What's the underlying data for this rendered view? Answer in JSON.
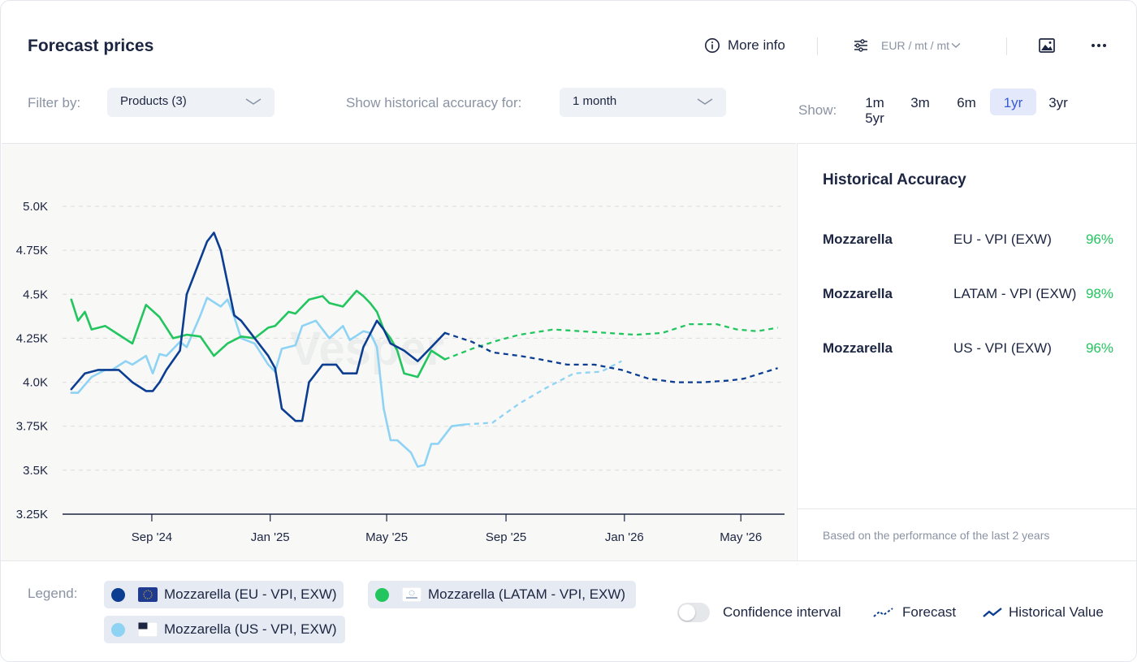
{
  "header": {
    "title": "Forecast prices",
    "more_info": "More info",
    "units": "EUR / mt / mt"
  },
  "filters": {
    "filter_label": "Filter by:",
    "products_value": "Products (3)",
    "history_label": "Show historical accuracy for:",
    "history_value": "1 month",
    "show_label": "Show:",
    "ranges": [
      "1m",
      "3m",
      "6m",
      "1yr",
      "3yr",
      "5yr"
    ],
    "active_range": "1yr"
  },
  "watermark": "Vesper",
  "accuracy": {
    "title": "Historical Accuracy",
    "rows": [
      {
        "product": "Mozzarella",
        "market": "EU - VPI (EXW)",
        "value": "96%"
      },
      {
        "product": "Mozzarella",
        "market": "LATAM - VPI (EXW)",
        "value": "98%"
      },
      {
        "product": "Mozzarella",
        "market": "US - VPI (EXW)",
        "value": "96%"
      }
    ],
    "footnote": "Based on the performance of the last 2 years"
  },
  "legend": {
    "label": "Legend:",
    "items": [
      {
        "label": "Mozzarella (EU - VPI, EXW)",
        "color": "#0b3d91"
      },
      {
        "label": "Mozzarella (LATAM - VPI, EXW)",
        "color": "#22c55e"
      },
      {
        "label": "Mozzarella (US - VPI, EXW)",
        "color": "#8fd3f4"
      }
    ],
    "confidence": "Confidence interval",
    "confidence_on": false,
    "forecast": "Forecast",
    "historical": "Historical Value"
  },
  "chart_data": {
    "type": "line",
    "ylim": [
      3250,
      5000
    ],
    "yticks": [
      3250,
      3500,
      3750,
      4000,
      4250,
      4500,
      4750,
      5000
    ],
    "ytick_labels": [
      "3.25K",
      "3.5K",
      "3.75K",
      "4.0K",
      "4.25K",
      "4.5K",
      "4.75K",
      "5.0K"
    ],
    "xlim": [
      "2024-06-01",
      "2026-06-15"
    ],
    "xticks": [
      "2024-09-01",
      "2025-01-01",
      "2025-05-01",
      "2025-09-01",
      "2026-01-01",
      "2026-05-01"
    ],
    "xtick_labels": [
      "Sep '24",
      "Jan '25",
      "May '25",
      "Sep '25",
      "Jan '26",
      "May '26"
    ],
    "grid": true,
    "series": [
      {
        "name": "Mozzarella (EU - VPI, EXW)",
        "color": "#0b3d91",
        "historical": [
          [
            "2024-06-10",
            3960
          ],
          [
            "2024-06-24",
            4050
          ],
          [
            "2024-07-08",
            4070
          ],
          [
            "2024-07-29",
            4070
          ],
          [
            "2024-08-12",
            4000
          ],
          [
            "2024-08-26",
            3950
          ],
          [
            "2024-09-02",
            3950
          ],
          [
            "2024-09-09",
            4000
          ],
          [
            "2024-09-16",
            4070
          ],
          [
            "2024-09-30",
            4180
          ],
          [
            "2024-10-07",
            4500
          ],
          [
            "2024-10-14",
            4600
          ],
          [
            "2024-10-28",
            4800
          ],
          [
            "2024-11-04",
            4850
          ],
          [
            "2024-11-11",
            4750
          ],
          [
            "2024-11-25",
            4380
          ],
          [
            "2024-12-02",
            4350
          ],
          [
            "2024-12-16",
            4250
          ],
          [
            "2024-12-30",
            4150
          ],
          [
            "2025-01-06",
            4080
          ],
          [
            "2025-01-13",
            3850
          ],
          [
            "2025-01-27",
            3780
          ],
          [
            "2025-02-03",
            3780
          ],
          [
            "2025-02-10",
            4000
          ],
          [
            "2025-02-24",
            4100
          ],
          [
            "2025-03-10",
            4100
          ],
          [
            "2025-03-17",
            4050
          ],
          [
            "2025-03-31",
            4050
          ],
          [
            "2025-04-07",
            4200
          ],
          [
            "2025-04-21",
            4350
          ],
          [
            "2025-04-28",
            4300
          ],
          [
            "2025-05-05",
            4220
          ],
          [
            "2025-05-19",
            4180
          ],
          [
            "2025-06-02",
            4120
          ],
          [
            "2025-06-16",
            4200
          ],
          [
            "2025-06-30",
            4280
          ]
        ],
        "forecast": [
          [
            "2025-06-30",
            4280
          ],
          [
            "2025-07-28",
            4230
          ],
          [
            "2025-08-18",
            4170
          ],
          [
            "2025-09-15",
            4150
          ],
          [
            "2025-10-06",
            4130
          ],
          [
            "2025-11-03",
            4100
          ],
          [
            "2025-12-01",
            4100
          ],
          [
            "2025-12-29",
            4070
          ],
          [
            "2026-01-26",
            4020
          ],
          [
            "2026-02-23",
            4000
          ],
          [
            "2026-03-23",
            4000
          ],
          [
            "2026-04-20",
            4010
          ],
          [
            "2026-05-04",
            4020
          ],
          [
            "2026-06-08",
            4080
          ]
        ]
      },
      {
        "name": "Mozzarella (LATAM - VPI, EXW)",
        "color": "#22c55e",
        "historical": [
          [
            "2024-06-10",
            4470
          ],
          [
            "2024-06-17",
            4350
          ],
          [
            "2024-06-24",
            4400
          ],
          [
            "2024-07-01",
            4300
          ],
          [
            "2024-07-15",
            4320
          ],
          [
            "2024-07-29",
            4270
          ],
          [
            "2024-08-12",
            4220
          ],
          [
            "2024-08-26",
            4440
          ],
          [
            "2024-09-09",
            4370
          ],
          [
            "2024-09-23",
            4250
          ],
          [
            "2024-10-07",
            4270
          ],
          [
            "2024-10-21",
            4260
          ],
          [
            "2024-11-04",
            4150
          ],
          [
            "2024-11-18",
            4220
          ],
          [
            "2024-12-02",
            4260
          ],
          [
            "2024-12-16",
            4250
          ],
          [
            "2024-12-30",
            4310
          ],
          [
            "2025-01-06",
            4320
          ],
          [
            "2025-01-20",
            4400
          ],
          [
            "2025-01-27",
            4390
          ],
          [
            "2025-02-10",
            4470
          ],
          [
            "2025-02-24",
            4490
          ],
          [
            "2025-03-03",
            4450
          ],
          [
            "2025-03-17",
            4430
          ],
          [
            "2025-03-31",
            4520
          ],
          [
            "2025-04-07",
            4490
          ],
          [
            "2025-04-14",
            4450
          ],
          [
            "2025-04-21",
            4400
          ],
          [
            "2025-04-28",
            4300
          ],
          [
            "2025-05-05",
            4250
          ],
          [
            "2025-05-12",
            4180
          ],
          [
            "2025-05-19",
            4050
          ],
          [
            "2025-06-02",
            4030
          ],
          [
            "2025-06-16",
            4180
          ],
          [
            "2025-06-30",
            4130
          ]
        ],
        "forecast": [
          [
            "2025-06-30",
            4130
          ],
          [
            "2025-07-28",
            4190
          ],
          [
            "2025-08-25",
            4240
          ],
          [
            "2025-09-15",
            4270
          ],
          [
            "2025-10-20",
            4300
          ],
          [
            "2025-11-17",
            4290
          ],
          [
            "2025-12-15",
            4280
          ],
          [
            "2026-01-12",
            4270
          ],
          [
            "2026-02-09",
            4280
          ],
          [
            "2026-03-09",
            4330
          ],
          [
            "2026-04-06",
            4330
          ],
          [
            "2026-04-27",
            4300
          ],
          [
            "2026-05-18",
            4290
          ],
          [
            "2026-06-08",
            4310
          ]
        ]
      },
      {
        "name": "Mozzarella (US - VPI, EXW)",
        "color": "#8fd3f4",
        "historical": [
          [
            "2024-06-10",
            3940
          ],
          [
            "2024-06-17",
            3940
          ],
          [
            "2024-07-01",
            4030
          ],
          [
            "2024-07-15",
            4070
          ],
          [
            "2024-07-22",
            4070
          ],
          [
            "2024-08-05",
            4120
          ],
          [
            "2024-08-12",
            4100
          ],
          [
            "2024-08-26",
            4150
          ],
          [
            "2024-09-02",
            4050
          ],
          [
            "2024-09-09",
            4160
          ],
          [
            "2024-09-16",
            4150
          ],
          [
            "2024-09-30",
            4230
          ],
          [
            "2024-10-07",
            4200
          ],
          [
            "2024-10-21",
            4380
          ],
          [
            "2024-10-28",
            4480
          ],
          [
            "2024-11-11",
            4430
          ],
          [
            "2024-11-18",
            4470
          ],
          [
            "2024-11-25",
            4370
          ],
          [
            "2024-12-02",
            4250
          ],
          [
            "2024-12-16",
            4220
          ],
          [
            "2024-12-30",
            4100
          ],
          [
            "2025-01-06",
            4060
          ],
          [
            "2025-01-13",
            4190
          ],
          [
            "2025-01-27",
            4210
          ],
          [
            "2025-02-03",
            4320
          ],
          [
            "2025-02-17",
            4350
          ],
          [
            "2025-03-03",
            4250
          ],
          [
            "2025-03-17",
            4320
          ],
          [
            "2025-03-24",
            4240
          ],
          [
            "2025-04-07",
            4290
          ],
          [
            "2025-04-14",
            4280
          ],
          [
            "2025-04-21",
            4200
          ],
          [
            "2025-04-28",
            3850
          ],
          [
            "2025-05-05",
            3670
          ],
          [
            "2025-05-12",
            3670
          ],
          [
            "2025-05-26",
            3600
          ],
          [
            "2025-06-02",
            3520
          ],
          [
            "2025-06-09",
            3530
          ],
          [
            "2025-06-16",
            3650
          ],
          [
            "2025-06-23",
            3650
          ],
          [
            "2025-07-07",
            3750
          ],
          [
            "2025-07-21",
            3760
          ]
        ],
        "forecast": [
          [
            "2025-07-21",
            3760
          ],
          [
            "2025-08-18",
            3770
          ],
          [
            "2025-09-15",
            3880
          ],
          [
            "2025-10-13",
            3970
          ],
          [
            "2025-11-10",
            4050
          ],
          [
            "2025-12-08",
            4060
          ],
          [
            "2025-12-29",
            4120
          ]
        ]
      }
    ]
  }
}
